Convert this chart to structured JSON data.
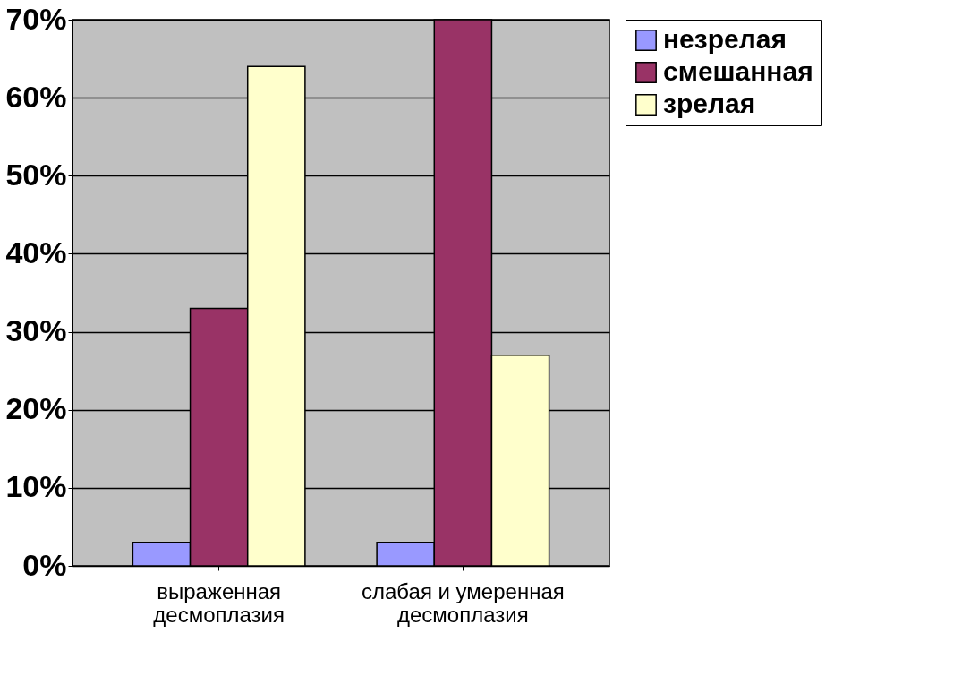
{
  "chart_data": {
    "type": "bar",
    "categories": [
      "выраженная\nдесмоплазия",
      "слабая и умеренная\nдесмоплазия"
    ],
    "series": [
      {
        "name": "незрелая",
        "color": "#9999ff",
        "values": [
          3,
          3
        ]
      },
      {
        "name": "смешанная",
        "color": "#993366",
        "values": [
          33,
          70
        ]
      },
      {
        "name": "зрелая",
        "color": "#ffffcc",
        "values": [
          64,
          27
        ]
      }
    ],
    "ylim": [
      0,
      70
    ],
    "yticks": [
      {
        "value": 0,
        "label": "0%"
      },
      {
        "value": 10,
        "label": "10%"
      },
      {
        "value": 20,
        "label": "20%"
      },
      {
        "value": 30,
        "label": "30%"
      },
      {
        "value": 40,
        "label": "40%"
      },
      {
        "value": 50,
        "label": "50%"
      },
      {
        "value": 60,
        "label": "60%"
      },
      {
        "value": 70,
        "label": "70%"
      }
    ],
    "grid": "y",
    "legend": "right"
  }
}
